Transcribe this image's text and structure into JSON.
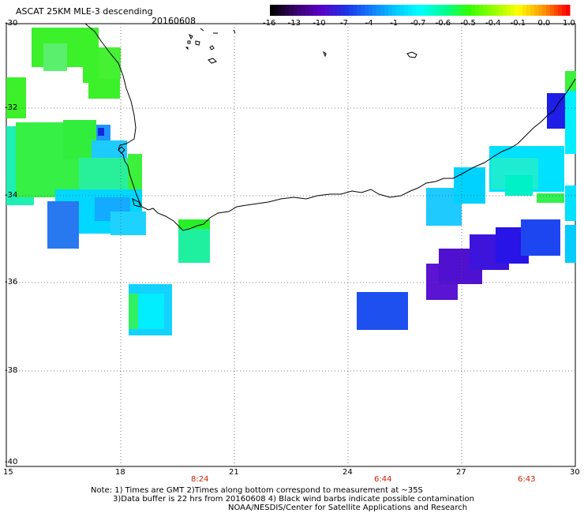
{
  "header": {
    "title": "ASCAT 25KM MLE-3 descending",
    "date": "20160608"
  },
  "colorbar": {
    "labels": [
      "-16",
      "-13",
      "-10",
      "-7",
      "-4",
      "-1",
      "-0.7",
      "-0.6",
      "-0.5",
      "-0.4",
      "-0.1",
      "0.0",
      "1.0"
    ],
    "colors": [
      "#000000",
      "#3a006e",
      "#5a00c8",
      "#1e32e6",
      "#1478ff",
      "#00c8ff",
      "#00ffff",
      "#00ff96",
      "#32ff00",
      "#96ff00",
      "#ffff00",
      "#ff9600",
      "#ff0000"
    ]
  },
  "axes": {
    "y_labels": [
      "-30",
      "-32",
      "-34",
      "-36",
      "-38",
      "-40"
    ],
    "x_labels": [
      "15",
      "18",
      "21",
      "24",
      "27",
      "30"
    ]
  },
  "times": [
    "8:24",
    "6:44",
    "6:43"
  ],
  "notes": {
    "line1": "Note: 1) Times are GMT 2)Times along bottom correspond to measurement at ~35S",
    "line2": "3)Data buffer is 22 hrs from 20160608 4) Black wind barbs indicate possible contamination",
    "line3": "NOAA/NESDIS/Center for Satellite Applications and Research"
  }
}
